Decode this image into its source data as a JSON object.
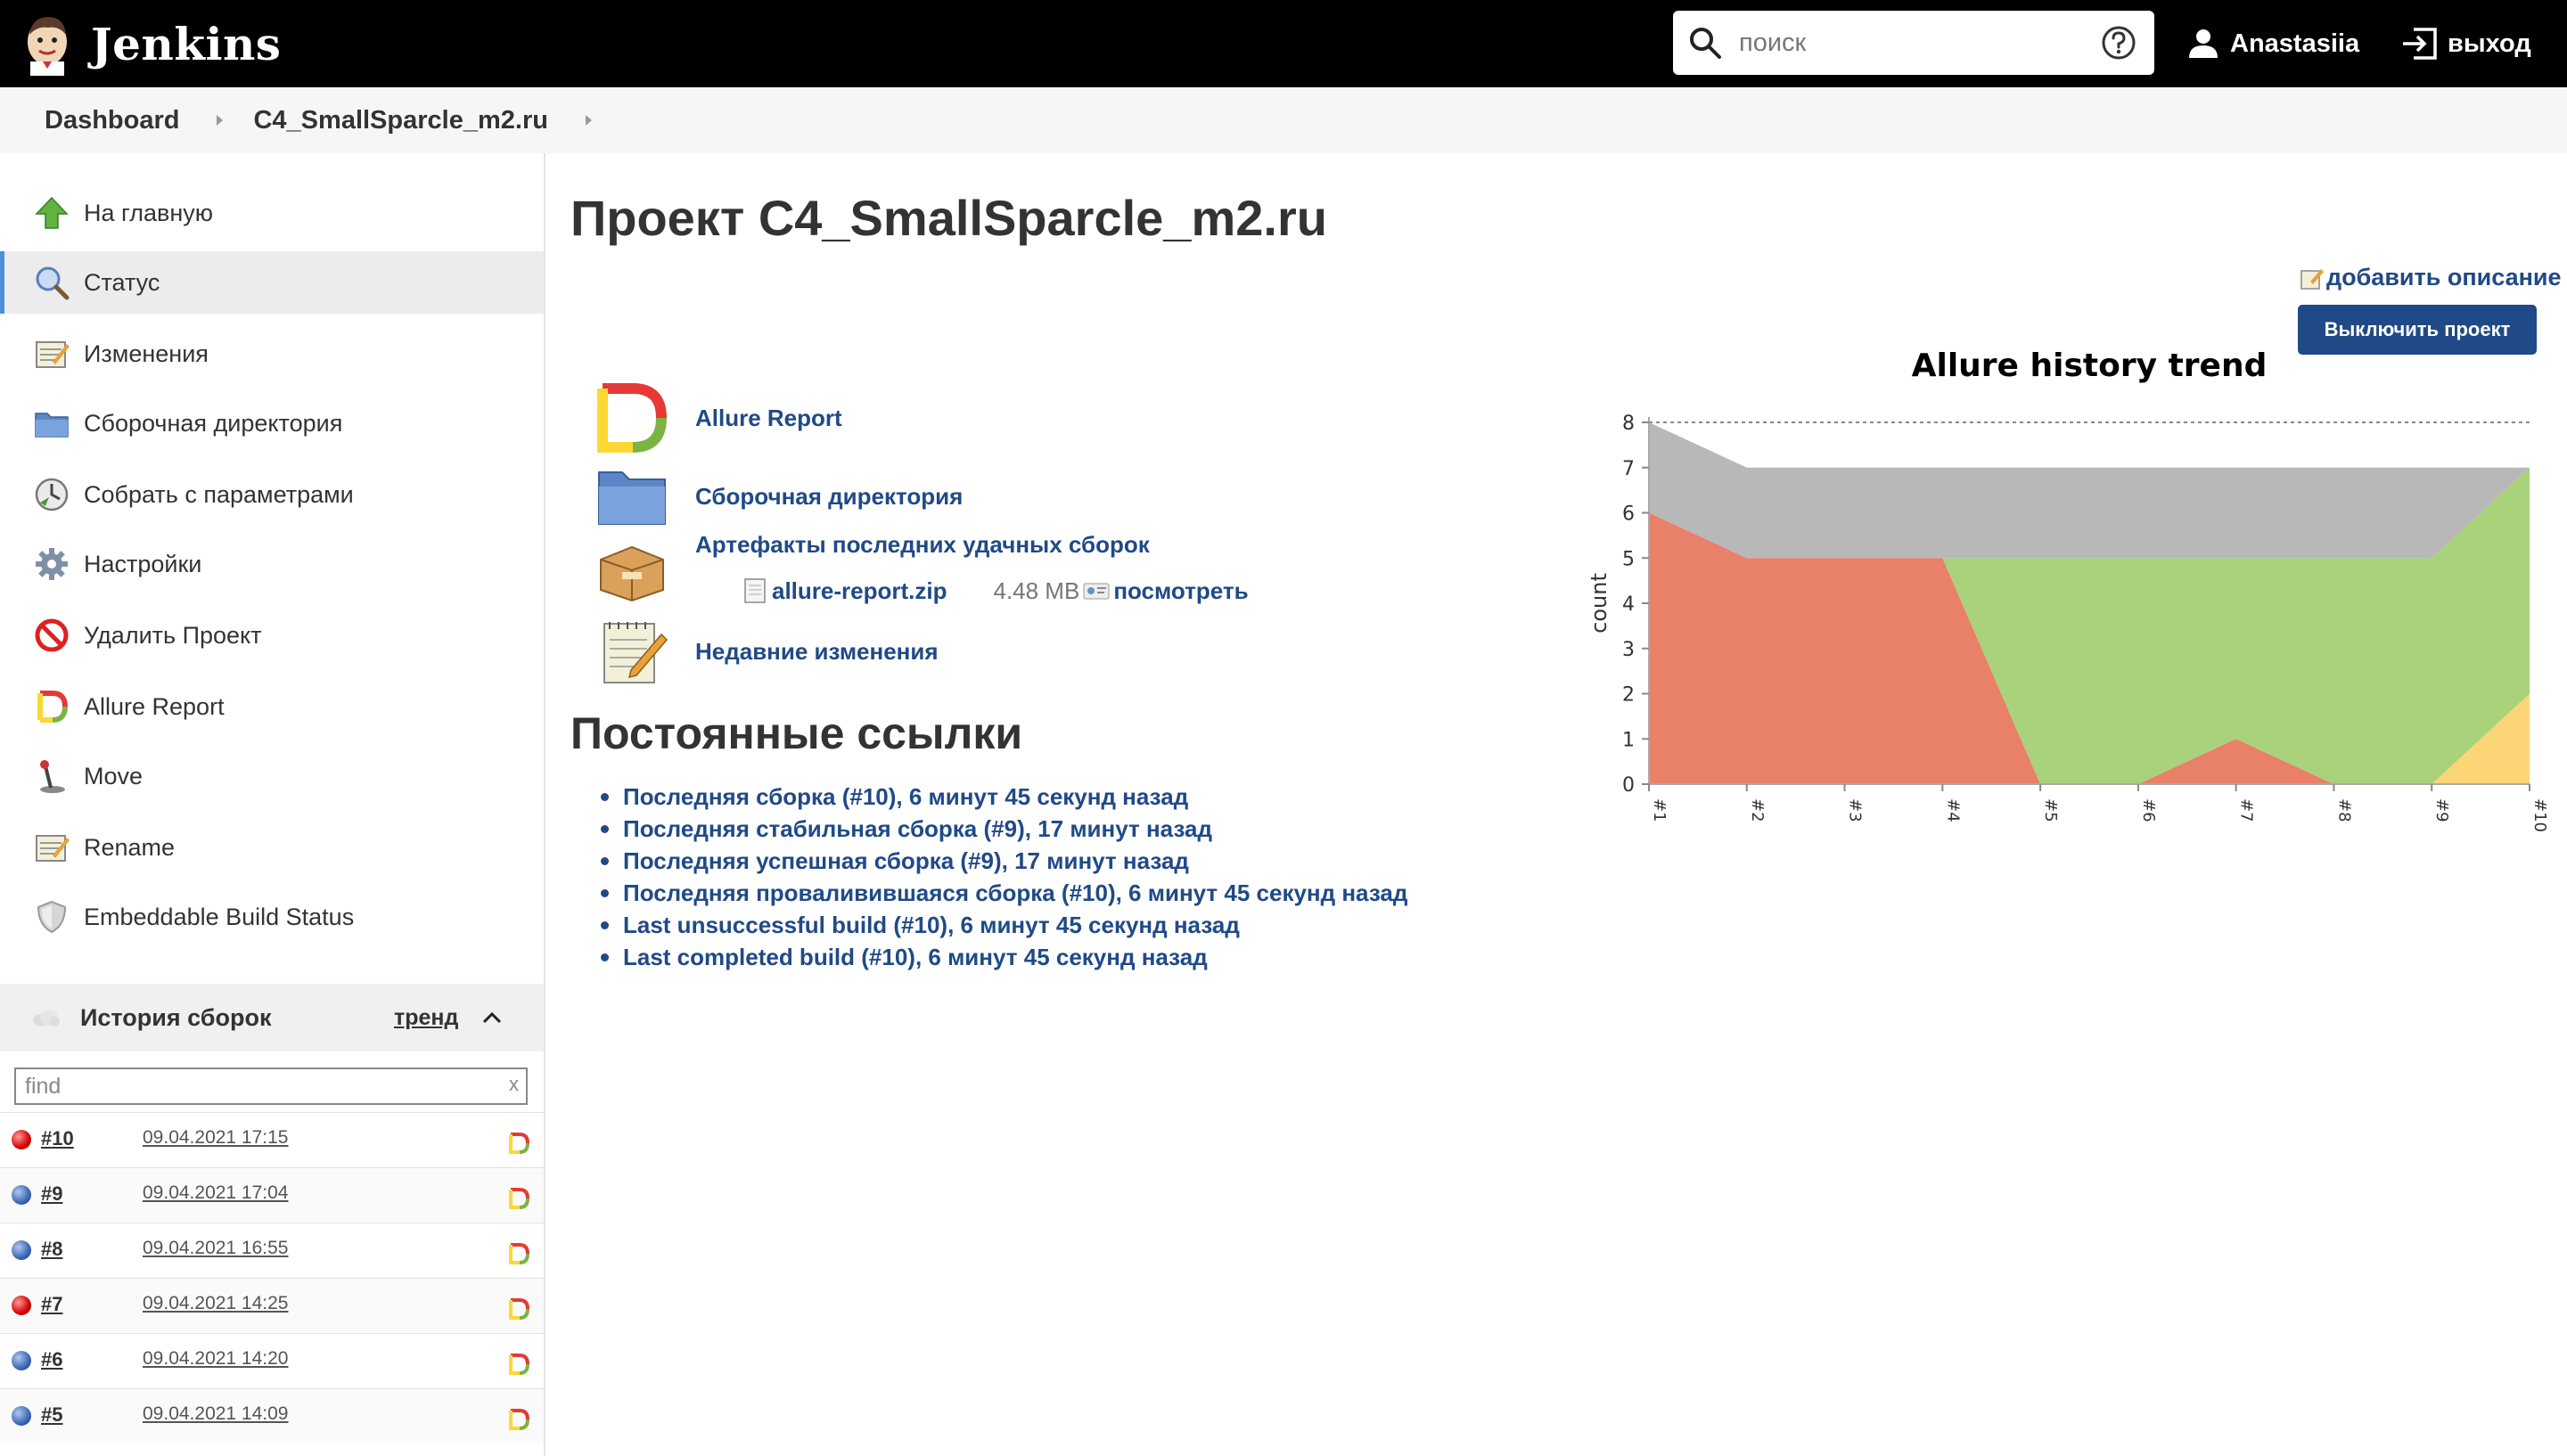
{
  "header": {
    "brand": "Jenkins",
    "search_placeholder": "поиск",
    "user_name": "Anastasiia",
    "logout_label": "выход"
  },
  "breadcrumb": [
    "Dashboard",
    "C4_SmallSparcle_m2.ru"
  ],
  "sidebar": {
    "tasks": [
      {
        "label": "На главную",
        "icon": "up-arrow-icon"
      },
      {
        "label": "Статус",
        "icon": "magnifier-icon",
        "active": true
      },
      {
        "label": "Изменения",
        "icon": "notepad-icon"
      },
      {
        "label": "Сборочная директория",
        "icon": "folder-icon"
      },
      {
        "label": "Собрать с параметрами",
        "icon": "clock-icon"
      },
      {
        "label": "Настройки",
        "icon": "gear-icon"
      },
      {
        "label": "Удалить Проект",
        "icon": "no-entry-icon"
      },
      {
        "label": "Allure Report",
        "icon": "allure-icon"
      },
      {
        "label": "Move",
        "icon": "joystick-icon"
      },
      {
        "label": "Rename",
        "icon": "notepad-icon"
      },
      {
        "label": "Embeddable Build Status",
        "icon": "shield-icon"
      }
    ],
    "history": {
      "title": "История сборок",
      "trend_label": "тренд",
      "find_placeholder": "find",
      "find_clear": "x",
      "builds": [
        {
          "number": "#10",
          "date": "09.04.2021 17:15",
          "status": "red"
        },
        {
          "number": "#9",
          "date": "09.04.2021 17:04",
          "status": "blue"
        },
        {
          "number": "#8",
          "date": "09.04.2021 16:55",
          "status": "blue"
        },
        {
          "number": "#7",
          "date": "09.04.2021 14:25",
          "status": "red"
        },
        {
          "number": "#6",
          "date": "09.04.2021 14:20",
          "status": "blue"
        },
        {
          "number": "#5",
          "date": "09.04.2021 14:09",
          "status": "blue"
        }
      ]
    }
  },
  "main": {
    "title": "Проект C4_SmallSparcle_m2.ru",
    "add_description": "добавить описание",
    "disable_button": "Выключить проект",
    "links": {
      "allure": "Allure Report",
      "workspace": "Сборочная директория",
      "artifacts": "Артефакты последних удачных сборок",
      "changes": "Недавние изменения"
    },
    "artifact": {
      "name": "allure-report.zip",
      "size": "4.48 MB",
      "view": "посмотреть"
    },
    "permalinks_title": "Постоянные ссылки",
    "permalinks": [
      "Последняя сборка (#10), 6 минут 45 секунд назад",
      "Последняя стабильная сборка (#9), 17 минут назад",
      "Последняя успешная сборка (#9), 17 минут назад",
      "Последняя проваливившаяся сборка (#10), 6 минут 45 секунд назад",
      "Last unsuccessful build (#10), 6 минут 45 секунд назад",
      "Last completed build (#10), 6 минут 45 секунд назад"
    ]
  },
  "colors": {
    "link": "#204a87",
    "button": "#204a87",
    "failed": "#e8806a",
    "passed": "#a9d27a",
    "broken": "#fbd576",
    "skipped": "#b8b8b8"
  },
  "chart_data": {
    "type": "area",
    "title": "Allure history trend",
    "xlabel": "",
    "ylabel": "count",
    "categories": [
      "#1",
      "#2",
      "#3",
      "#4",
      "#5",
      "#6",
      "#7",
      "#8",
      "#9",
      "#10"
    ],
    "ylim": [
      0,
      8
    ],
    "yticks": [
      0,
      1,
      2,
      3,
      4,
      5,
      6,
      7,
      8
    ],
    "stacked": true,
    "grid": false,
    "series": [
      {
        "color": "#fbd576",
        "values": [
          0,
          0,
          0,
          0,
          0,
          0,
          0,
          0,
          0,
          2
        ]
      },
      {
        "color": "#e8806a",
        "values": [
          6,
          5,
          5,
          5,
          0,
          0,
          1,
          0,
          0,
          0
        ]
      },
      {
        "color": "#a9d27a",
        "values": [
          0,
          0,
          0,
          0,
          5,
          5,
          4,
          5,
          5,
          5
        ]
      },
      {
        "color": "#b8b8b8",
        "values": [
          2,
          2,
          2,
          2,
          2,
          2,
          2,
          2,
          2,
          0
        ]
      }
    ]
  }
}
